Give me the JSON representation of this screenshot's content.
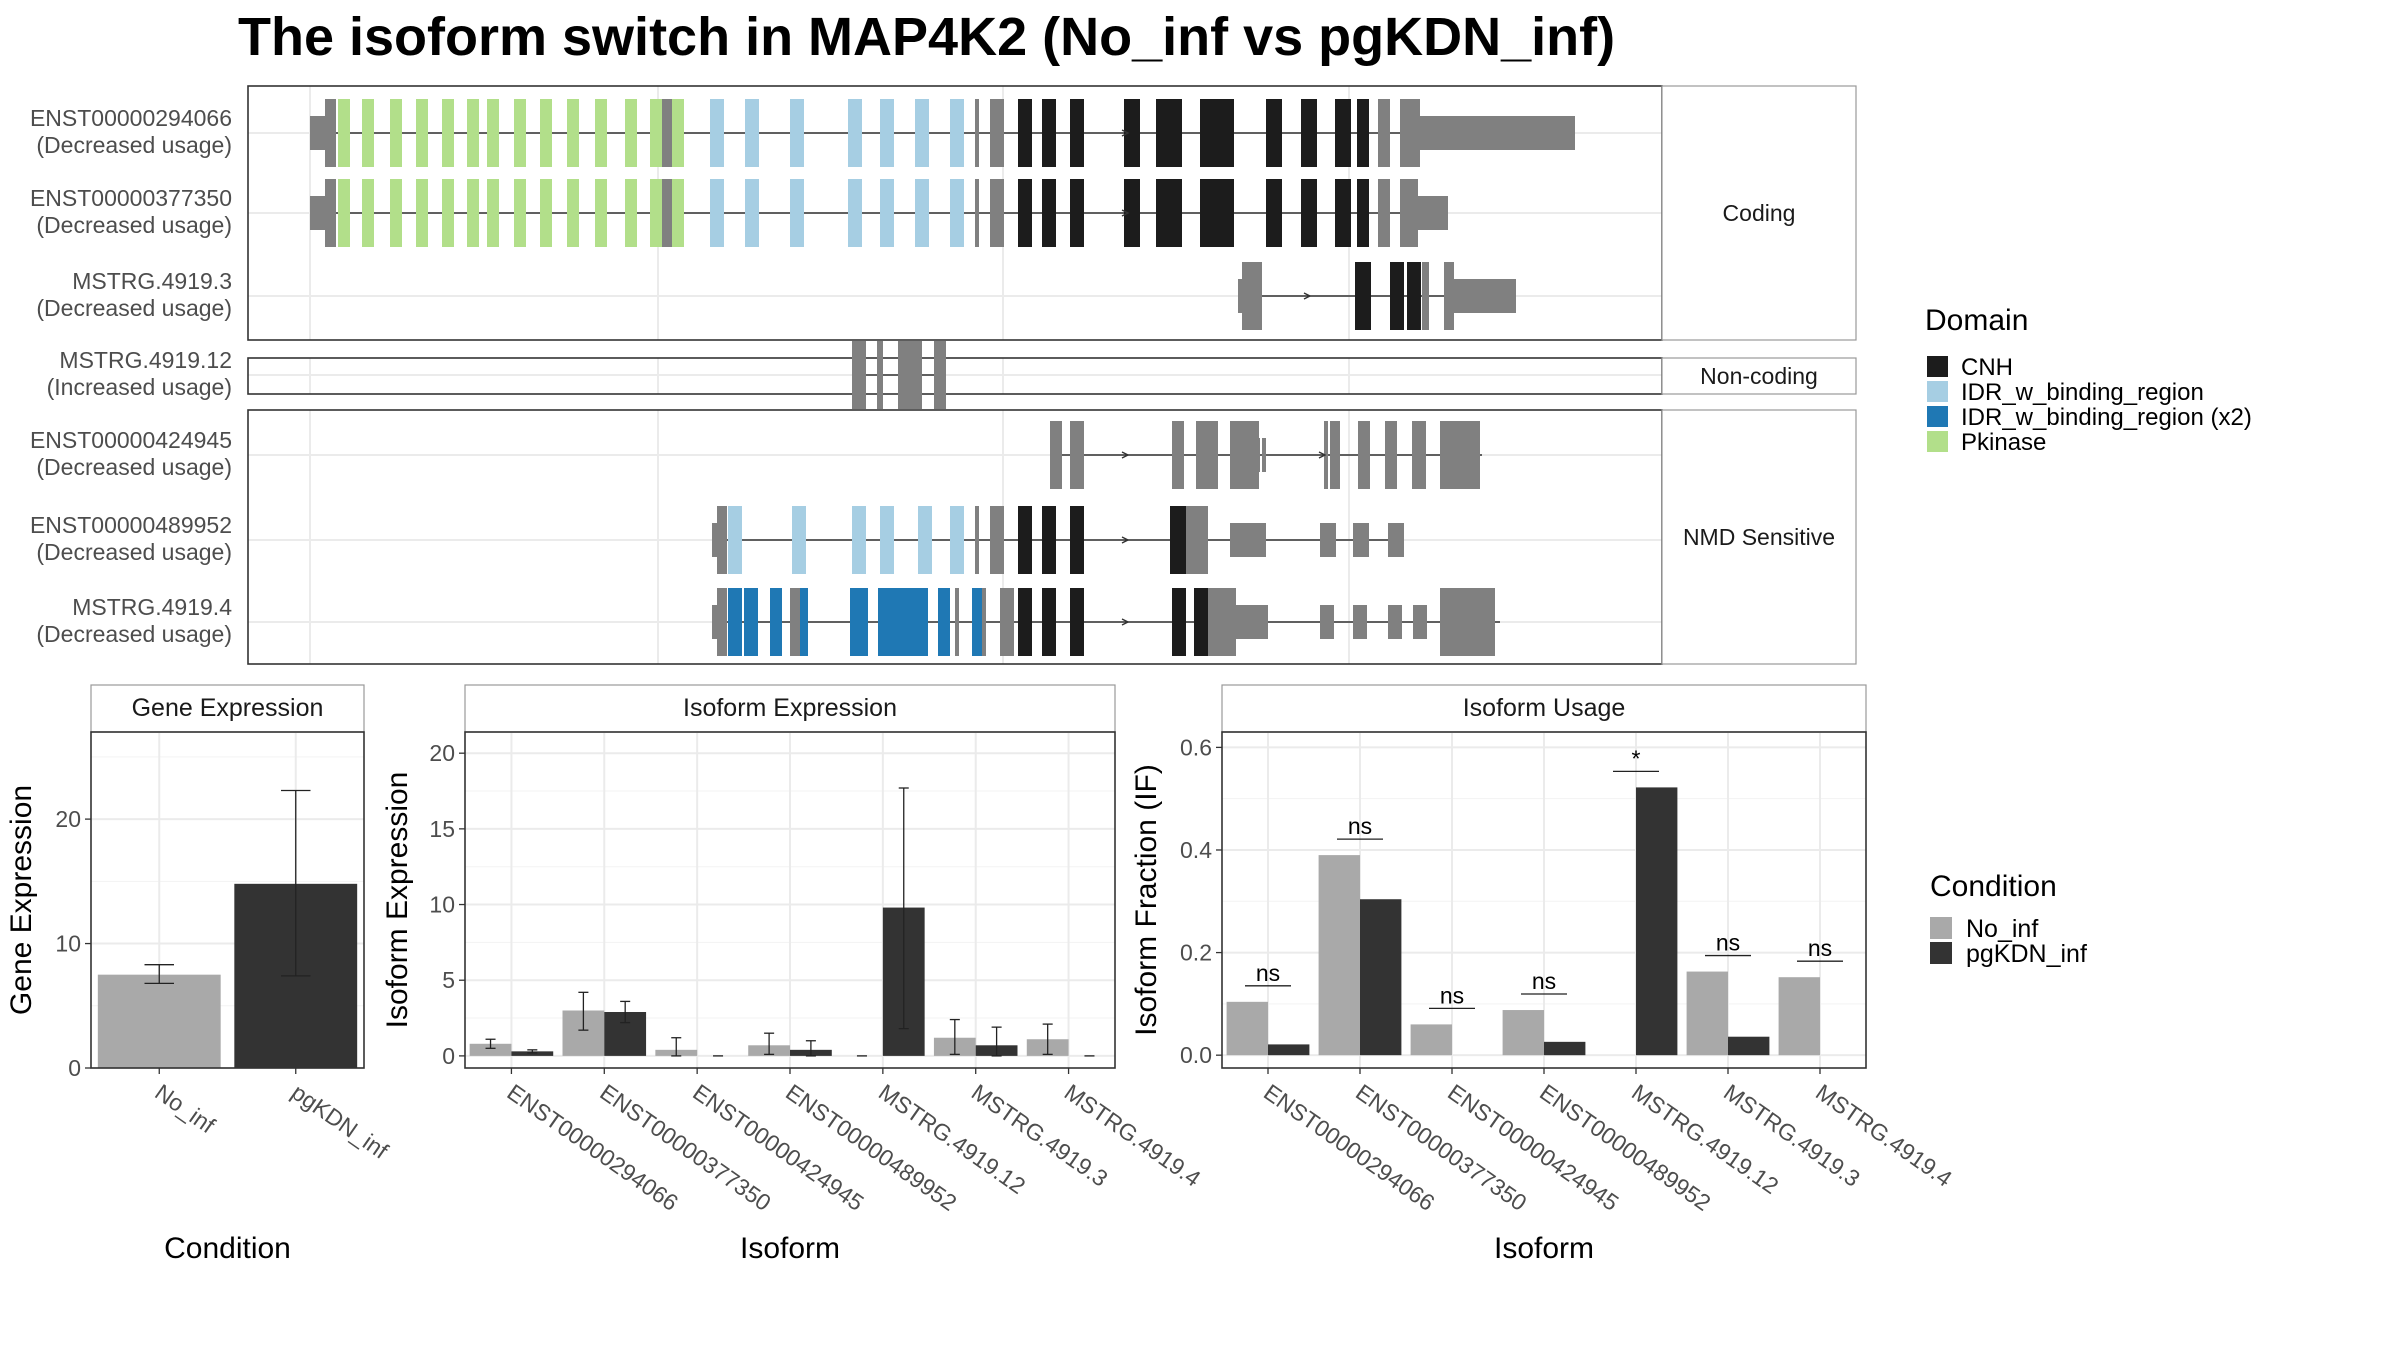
{
  "title": "The isoform switch in MAP4K2 (No_inf vs pgKDN_inf)",
  "colors": {
    "cnh": "#1c1c1c",
    "idr": "#a6cee3",
    "idr_x2": "#1f78b4",
    "pkinase": "#b2df8a",
    "utr": "#808080",
    "no_inf": "#a9a9a9",
    "pgkdn_inf": "#333333",
    "panel_border": "#333333",
    "grid": "#ebebeb"
  },
  "structure": {
    "facets": [
      {
        "key": "coding",
        "label": "Coding"
      },
      {
        "key": "noncoding",
        "label": "Non-coding"
      },
      {
        "key": "nmd",
        "label": "NMD Sensitive"
      }
    ],
    "isoforms": [
      {
        "id": "ENST00000294066",
        "usage": "(Decreased usage)",
        "facet": "coding"
      },
      {
        "id": "ENST00000377350",
        "usage": "(Decreased usage)",
        "facet": "coding"
      },
      {
        "id": "MSTRG.4919.3",
        "usage": "(Decreased usage)",
        "facet": "coding"
      },
      {
        "id": "MSTRG.4919.12",
        "usage": "(Increased usage)",
        "facet": "noncoding"
      },
      {
        "id": "ENST00000424945",
        "usage": "(Decreased usage)",
        "facet": "nmd"
      },
      {
        "id": "ENST00000489952",
        "usage": "(Decreased usage)",
        "facet": "nmd"
      },
      {
        "id": "MSTRG.4919.4",
        "usage": "(Decreased usage)",
        "facet": "nmd"
      }
    ]
  },
  "legend_domain": {
    "title": "Domain",
    "items": [
      {
        "label": "CNH",
        "color": "#1c1c1c"
      },
      {
        "label": "IDR_w_binding_region",
        "color": "#a6cee3"
      },
      {
        "label": "IDR_w_binding_region (x2)",
        "color": "#1f78b4"
      },
      {
        "label": "Pkinase",
        "color": "#b2df8a"
      }
    ]
  },
  "legend_condition": {
    "title": "Condition",
    "items": [
      {
        "label": "No_inf",
        "color": "#a9a9a9"
      },
      {
        "label": "pgKDN_inf",
        "color": "#333333"
      }
    ]
  },
  "chart_data": [
    {
      "type": "bar",
      "title": "Gene Expression",
      "xlabel": "Condition",
      "ylabel": "Gene Expression",
      "categories": [
        "No_inf",
        "pgKDN_inf"
      ],
      "values": [
        7.5,
        14.8
      ],
      "error_low": [
        6.8,
        7.4
      ],
      "error_high": [
        8.3,
        22.3
      ],
      "ylim": [
        0,
        27
      ],
      "yticks": [
        0,
        10,
        20
      ]
    },
    {
      "type": "bar",
      "title": "Isoform Expression",
      "xlabel": "Isoform",
      "ylabel": "Isoform Expression",
      "categories": [
        "ENST00000294066",
        "ENST00000377350",
        "ENST00000424945",
        "ENST00000489952",
        "MSTRG.4919.12",
        "MSTRG.4919.3",
        "MSTRG.4919.4"
      ],
      "series": [
        {
          "name": "No_inf",
          "values": [
            0.8,
            3.0,
            0.4,
            0.7,
            0.0,
            1.2,
            1.1
          ],
          "err_low": [
            0.5,
            1.7,
            0.0,
            0.1,
            0.0,
            0.1,
            0.1
          ],
          "err_high": [
            1.1,
            4.2,
            1.2,
            1.5,
            0.0,
            2.4,
            2.1
          ]
        },
        {
          "name": "pgKDN_inf",
          "values": [
            0.3,
            2.9,
            0.0,
            0.4,
            9.8,
            0.7,
            0.0
          ],
          "err_low": [
            0.2,
            2.2,
            0.0,
            0.0,
            1.8,
            0.0,
            0.0
          ],
          "err_high": [
            0.4,
            3.6,
            0.0,
            1.0,
            17.7,
            1.9,
            0.0
          ]
        }
      ],
      "ylim": [
        -0.8,
        21.4
      ],
      "yticks": [
        0,
        5,
        10,
        15,
        20
      ]
    },
    {
      "type": "bar",
      "title": "Isoform Usage",
      "xlabel": "Isoform",
      "ylabel": "Isoform Fraction (IF)",
      "categories": [
        "ENST00000294066",
        "ENST00000377350",
        "ENST00000424945",
        "ENST00000489952",
        "MSTRG.4919.12",
        "MSTRG.4919.3",
        "MSTRG.4919.4"
      ],
      "series": [
        {
          "name": "No_inf",
          "values": [
            0.104,
            0.39,
            0.06,
            0.088,
            0.0,
            0.163,
            0.152
          ]
        },
        {
          "name": "pgKDN_inf",
          "values": [
            0.021,
            0.304,
            0.0,
            0.026,
            0.522,
            0.036,
            0.0
          ]
        }
      ],
      "significance": [
        "ns",
        "ns",
        "ns",
        "ns",
        "*",
        "ns",
        "ns"
      ],
      "ylim": [
        -0.025,
        0.63
      ],
      "yticks": [
        0.0,
        0.2,
        0.4,
        0.6
      ],
      "ytick_labels": [
        "0.0",
        "0.2",
        "0.4",
        "0.6"
      ]
    }
  ]
}
